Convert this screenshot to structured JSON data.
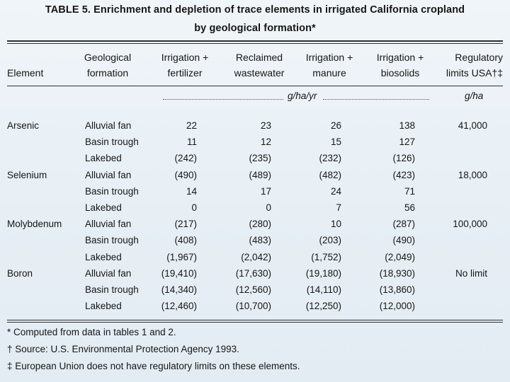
{
  "table": {
    "title_line1": "TABLE 5. Enrichment and depletion of trace elements in irrigated California  cropland",
    "title_line2": "by geological formation*",
    "headers": {
      "element": "Element",
      "formation_l1": "Geological",
      "formation_l2": "formation",
      "col1_l1": "Irrigation +",
      "col1_l2": "fertilizer",
      "col2_l1": "Reclaimed",
      "col2_l2": "wastewater",
      "col3_l1": "Irrigation +",
      "col3_l2": "manure",
      "col4_l1": "Irrigation +",
      "col4_l2": "biosolids",
      "col5_l1": "Regulatory",
      "col5_l2": "limits USA†‡"
    },
    "unit_gha_yr": "g/ha/yr",
    "unit_gha": "g/ha",
    "rows": [
      {
        "element": "Arsenic",
        "formation": "Alluvial fan",
        "v": [
          "22",
          "23",
          "26",
          "138"
        ],
        "limit": "41,000"
      },
      {
        "element": "",
        "formation": "Basin trough",
        "v": [
          "11",
          "12",
          "15",
          "127"
        ],
        "limit": ""
      },
      {
        "element": "",
        "formation": "Lakebed",
        "v": [
          "(242)",
          "(235)",
          "(232)",
          "(126)"
        ],
        "limit": ""
      },
      {
        "element": "Selenium",
        "formation": "Alluvial fan",
        "v": [
          "(490)",
          "(489)",
          "(482)",
          "(423)"
        ],
        "limit": "18,000"
      },
      {
        "element": "",
        "formation": "Basin trough",
        "v": [
          "14",
          "17",
          "24",
          "71"
        ],
        "limit": ""
      },
      {
        "element": "",
        "formation": "Lakebed",
        "v": [
          "0",
          "0",
          "7",
          "56"
        ],
        "limit": ""
      },
      {
        "element": "Molybdenum",
        "formation": "Alluvial fan",
        "v": [
          "(217)",
          "(280)",
          "10",
          "(287)"
        ],
        "limit": "100,000"
      },
      {
        "element": "",
        "formation": "Basin trough",
        "v": [
          "(408)",
          "(483)",
          "(203)",
          "(490)"
        ],
        "limit": ""
      },
      {
        "element": "",
        "formation": "Lakebed",
        "v": [
          "(1,967)",
          "(2,042)",
          "(1,752)",
          "(2,049)"
        ],
        "limit": ""
      },
      {
        "element": "Boron",
        "formation": "Alluvial fan",
        "v": [
          "(19,410)",
          "(17,630)",
          "(19,180)",
          "(18,930)"
        ],
        "limit": "No limit"
      },
      {
        "element": "",
        "formation": "Basin trough",
        "v": [
          "(14,340)",
          "(12,560)",
          "(14,110)",
          "(13,860)"
        ],
        "limit": ""
      },
      {
        "element": "",
        "formation": "Lakebed",
        "v": [
          "(12,460)",
          "(10,700)",
          "(12,250)",
          "(12,000)"
        ],
        "limit": ""
      }
    ],
    "footnotes": [
      "* Computed from data in tables 1 and 2.",
      "† Source: U.S. Environmental Protection Agency 1993.",
      "‡ European Union does not have regulatory limits on these elements."
    ]
  }
}
